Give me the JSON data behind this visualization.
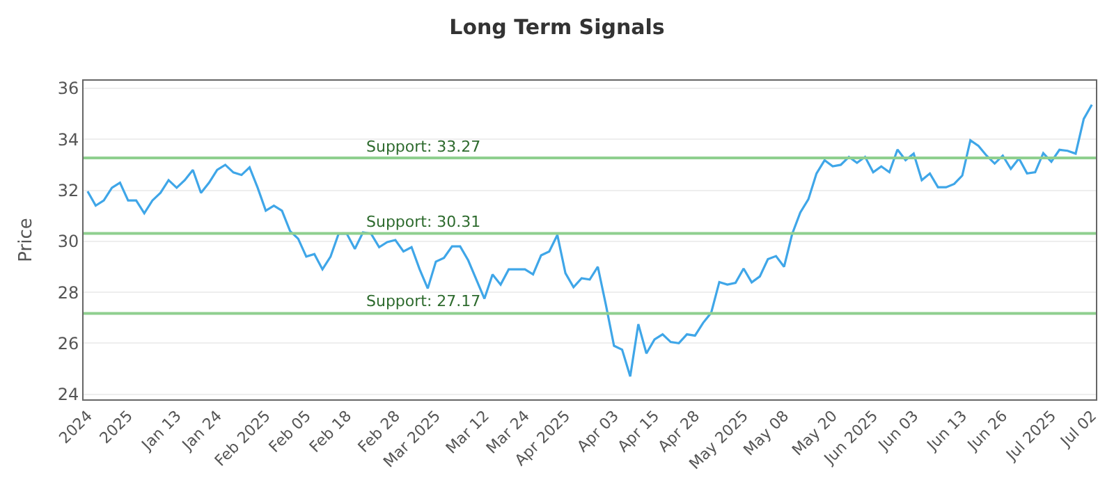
{
  "chart_data": {
    "type": "line",
    "title": "Long Term Signals",
    "ylabel": "Price",
    "categories": [
      "2024",
      null,
      null,
      null,
      null,
      "2025",
      null,
      null,
      null,
      null,
      null,
      "Jan 13",
      null,
      null,
      null,
      null,
      "Jan 24",
      null,
      null,
      null,
      null,
      null,
      "Feb 2025",
      null,
      null,
      null,
      null,
      "Feb 05",
      null,
      null,
      null,
      null,
      "Feb 18",
      null,
      null,
      null,
      null,
      null,
      "Feb 28",
      null,
      null,
      null,
      null,
      "Mar 2025",
      null,
      null,
      null,
      null,
      null,
      "Mar 12",
      null,
      null,
      null,
      null,
      "Mar 24",
      null,
      null,
      null,
      null,
      "Apr 2025",
      null,
      null,
      null,
      null,
      null,
      "Apr 03",
      null,
      null,
      null,
      null,
      "Apr 15",
      null,
      null,
      null,
      null,
      "Apr 28",
      null,
      null,
      null,
      null,
      null,
      "May 2025",
      null,
      null,
      null,
      null,
      "May 08",
      null,
      null,
      null,
      null,
      null,
      "May 20",
      null,
      null,
      null,
      null,
      "Jun 2025",
      null,
      null,
      null,
      null,
      "Jun 03",
      null,
      null,
      null,
      null,
      null,
      "Jun 13",
      null,
      null,
      null,
      null,
      "Jun 26",
      null,
      null,
      null,
      null,
      null,
      "Jul 2025",
      null,
      null,
      null,
      null,
      "Jul 02"
    ],
    "series": [
      {
        "color": "#3fa6e8",
        "values": [
          31.96,
          31.4,
          31.6,
          32.1,
          32.3,
          31.6,
          31.6,
          31.1,
          31.6,
          31.9,
          32.4,
          32.1,
          32.4,
          32.8,
          31.9,
          32.3,
          32.8,
          33.0,
          32.7,
          32.6,
          32.9,
          32.1,
          31.2,
          31.4,
          31.2,
          30.4,
          30.1,
          29.4,
          29.5,
          28.9,
          29.4,
          30.3,
          30.3,
          29.7,
          30.35,
          30.3,
          29.77,
          29.97,
          30.05,
          29.6,
          29.77,
          28.9,
          28.15,
          29.2,
          29.35,
          29.8,
          29.8,
          29.25,
          28.5,
          27.75,
          28.7,
          28.3,
          28.9,
          28.9,
          28.9,
          28.7,
          29.45,
          29.6,
          30.25,
          28.75,
          28.2,
          28.55,
          28.5,
          29.0,
          27.5,
          25.9,
          25.75,
          24.7,
          26.75,
          25.6,
          26.15,
          26.35,
          26.05,
          26.0,
          26.35,
          26.3,
          26.8,
          27.2,
          28.4,
          28.3,
          28.37,
          28.93,
          28.39,
          28.62,
          29.3,
          29.42,
          29.0,
          30.29,
          31.13,
          31.65,
          32.66,
          33.18,
          32.94,
          33.0,
          33.31,
          33.08,
          33.31,
          32.71,
          32.94,
          32.71,
          33.6,
          33.18,
          33.44,
          32.4,
          32.66,
          32.12,
          32.12,
          32.25,
          32.58,
          33.96,
          33.74,
          33.36,
          33.05,
          33.36,
          32.84,
          33.25,
          32.66,
          32.71,
          33.46,
          33.12,
          33.59,
          33.55,
          33.44,
          34.8,
          35.36
        ]
      }
    ],
    "ylim": [
      23.8,
      36.3
    ],
    "yticks": [
      24,
      26,
      28,
      30,
      32,
      34,
      36
    ],
    "grid": "y",
    "legend": false,
    "marker": "none",
    "line_style": "solid",
    "ref_lines": [
      {
        "axis": "y",
        "value": 33.27,
        "label": "Support: 33.27",
        "color": "#8fcf8f"
      },
      {
        "axis": "y",
        "value": 30.31,
        "label": "Support: 30.31",
        "color": "#8fcf8f"
      },
      {
        "axis": "y",
        "value": 27.17,
        "label": "Support: 27.17",
        "color": "#8fcf8f"
      }
    ]
  }
}
